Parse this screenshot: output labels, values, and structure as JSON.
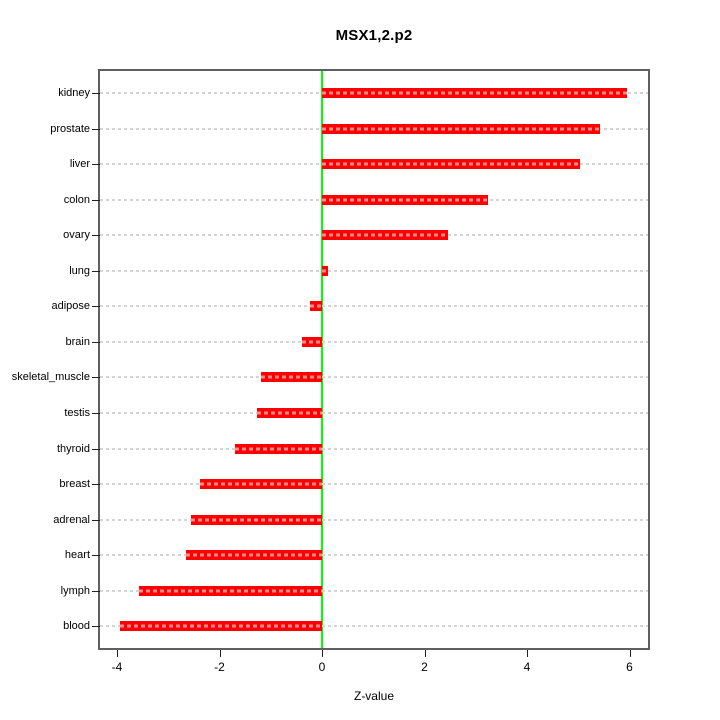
{
  "title": "MSX1,2.p2",
  "chart_data": {
    "type": "bar",
    "orientation": "horizontal",
    "title": "MSX1,2.p2",
    "xlabel": "Z-value",
    "ylabel": "",
    "categories": [
      "kidney",
      "prostate",
      "liver",
      "colon",
      "ovary",
      "lung",
      "adipose",
      "brain",
      "skeletal_muscle",
      "testis",
      "thyroid",
      "breast",
      "adrenal",
      "heart",
      "lymph",
      "blood"
    ],
    "values": [
      5.96,
      5.42,
      5.04,
      3.24,
      2.46,
      0.12,
      -0.23,
      -0.39,
      -1.2,
      -1.26,
      -1.69,
      -2.39,
      -2.55,
      -2.66,
      -3.57,
      -3.94
    ],
    "x_ticks": [
      -4,
      -2,
      0,
      2,
      4,
      6
    ],
    "xlim": [
      -4.35,
      6.35
    ],
    "grid": true,
    "grid_style": "dashed",
    "zero_line": true,
    "legend": null,
    "colors": {
      "bar": "#fe0000",
      "bar_dash": "rgba(255,255,255,0.55)",
      "zero_line": "#00ff00",
      "grid_line": "#d4d4d4",
      "box_border": "#5f5f5f",
      "text": "#000000"
    }
  }
}
